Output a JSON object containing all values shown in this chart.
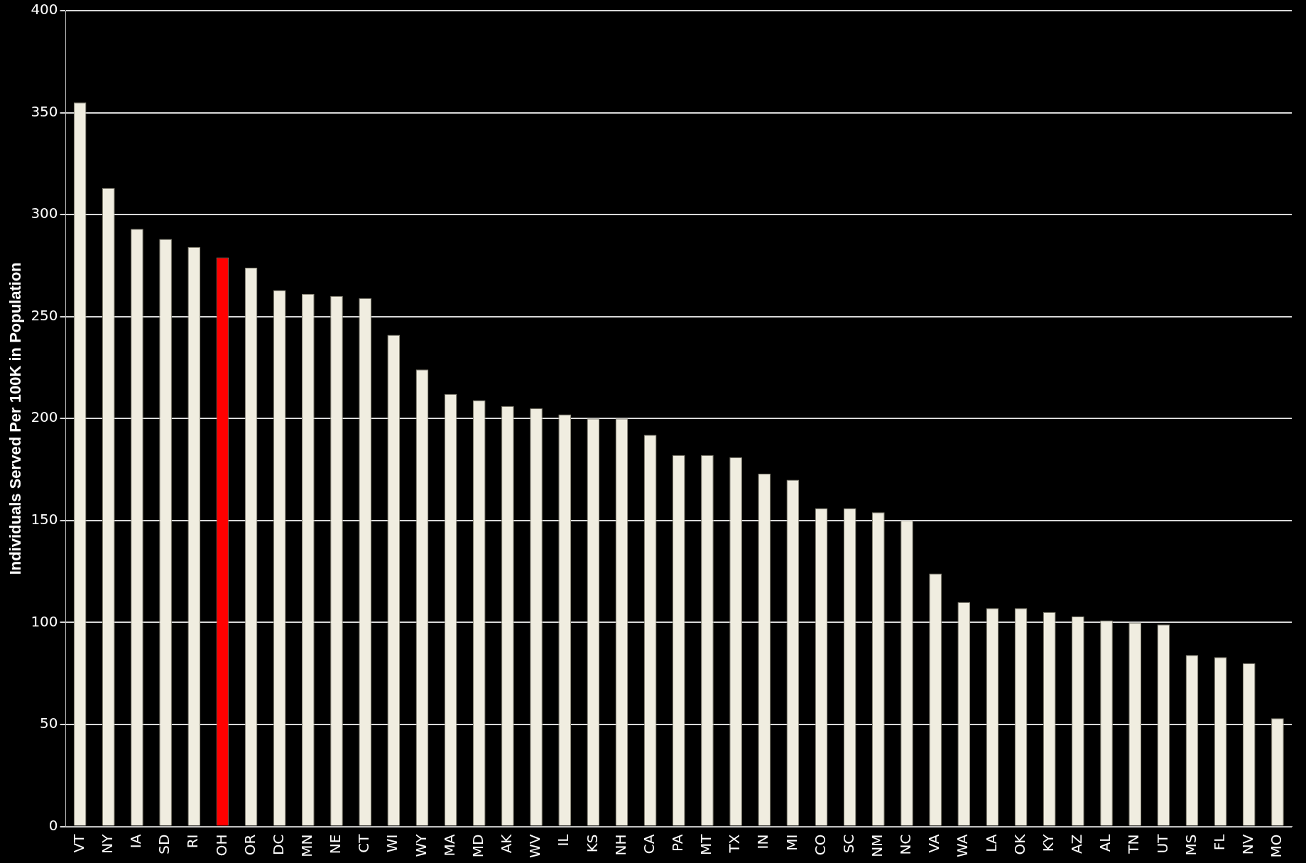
{
  "chart_data": {
    "type": "bar",
    "ylabel": "Individuals Served Per 100K in Population",
    "categories": [
      "VT",
      "NY",
      "IA",
      "SD",
      "RI",
      "OH",
      "OR",
      "DC",
      "MN",
      "NE",
      "CT",
      "WI",
      "WY",
      "MA",
      "MD",
      "AK",
      "WV",
      "IL",
      "KS",
      "NH",
      "CA",
      "PA",
      "MT",
      "TX",
      "IN",
      "MI",
      "CO",
      "SC",
      "NM",
      "NC",
      "VA",
      "WA",
      "LA",
      "OK",
      "KY",
      "AZ",
      "AL",
      "TN",
      "UT",
      "MS",
      "FL",
      "NV",
      "MO"
    ],
    "values": [
      355,
      313,
      293,
      288,
      284,
      279,
      274,
      263,
      261,
      260,
      259,
      241,
      224,
      212,
      209,
      206,
      205,
      202,
      200,
      200,
      192,
      182,
      182,
      181,
      173,
      170,
      156,
      156,
      154,
      150,
      124,
      110,
      107,
      107,
      105,
      103,
      101,
      100,
      99,
      84,
      83,
      80,
      53
    ],
    "colors": [
      "#f0ede0",
      "#f0ede0",
      "#f0ede0",
      "#f0ede0",
      "#f0ede0",
      "#ff0000",
      "#f0ede0",
      "#f0ede0",
      "#f0ede0",
      "#f0ede0",
      "#f0ede0",
      "#f0ede0",
      "#f0ede0",
      "#f0ede0",
      "#f0ede0",
      "#f0ede0",
      "#f0ede0",
      "#f0ede0",
      "#f0ede0",
      "#f0ede0",
      "#f0ede0",
      "#f0ede0",
      "#f0ede0",
      "#f0ede0",
      "#f0ede0",
      "#f0ede0",
      "#f0ede0",
      "#f0ede0",
      "#f0ede0",
      "#f0ede0",
      "#f0ede0",
      "#f0ede0",
      "#f0ede0",
      "#f0ede0",
      "#f0ede0",
      "#f0ede0",
      "#f0ede0",
      "#f0ede0",
      "#f0ede0",
      "#f0ede0",
      "#f0ede0",
      "#f0ede0",
      "#f0ede0"
    ],
    "ylim": [
      0,
      400
    ],
    "yticks": [
      0,
      50,
      100,
      150,
      200,
      250,
      300,
      350,
      400
    ],
    "grid": "y",
    "legend": false
  }
}
